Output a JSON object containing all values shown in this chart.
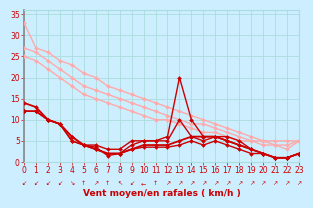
{
  "title": "",
  "xlabel": "Vent moyen/en rafales ( km/h )",
  "bg_color": "#cceeff",
  "grid_color": "#aadddd",
  "xlim": [
    0,
    23
  ],
  "ylim": [
    0,
    36
  ],
  "yticks": [
    0,
    5,
    10,
    15,
    20,
    25,
    30,
    35
  ],
  "xticks": [
    0,
    1,
    2,
    3,
    4,
    5,
    6,
    7,
    8,
    9,
    10,
    11,
    12,
    13,
    14,
    15,
    16,
    17,
    18,
    19,
    20,
    21,
    22,
    23
  ],
  "series": [
    {
      "x": [
        0,
        1,
        2,
        3,
        4,
        5,
        6,
        7,
        8,
        9,
        10,
        11,
        12,
        13,
        14,
        15,
        16,
        17,
        18,
        19,
        20,
        21,
        22,
        23
      ],
      "y": [
        33,
        27,
        26,
        24,
        23,
        21,
        20,
        18,
        17,
        16,
        15,
        14,
        13,
        12,
        11,
        10,
        9,
        8,
        7,
        6,
        5,
        5,
        5,
        5
      ],
      "color": "#ffaaaa",
      "lw": 1.0,
      "marker": "D",
      "ms": 2.0
    },
    {
      "x": [
        0,
        1,
        2,
        3,
        4,
        5,
        6,
        7,
        8,
        9,
        10,
        11,
        12,
        13,
        14,
        15,
        16,
        17,
        18,
        19,
        20,
        21,
        22,
        23
      ],
      "y": [
        27,
        26,
        24,
        22,
        20,
        18,
        17,
        16,
        15,
        14,
        13,
        12,
        11,
        10,
        9,
        9,
        8,
        7,
        6,
        5,
        5,
        4,
        4,
        5
      ],
      "color": "#ffaaaa",
      "lw": 1.0,
      "marker": "D",
      "ms": 2.0
    },
    {
      "x": [
        0,
        1,
        2,
        3,
        4,
        5,
        6,
        7,
        8,
        9,
        10,
        11,
        12,
        13,
        14,
        15,
        16,
        17,
        18,
        19,
        20,
        21,
        22,
        23
      ],
      "y": [
        25,
        24,
        22,
        20,
        18,
        16,
        15,
        14,
        13,
        12,
        11,
        10,
        10,
        9,
        8,
        7,
        7,
        6,
        5,
        5,
        4,
        4,
        3,
        5
      ],
      "color": "#ffaaaa",
      "lw": 1.0,
      "marker": "D",
      "ms": 2.0
    },
    {
      "x": [
        0,
        1,
        2,
        3,
        4,
        5,
        6,
        7,
        8,
        9,
        10,
        11,
        12,
        13,
        14,
        15,
        16,
        17,
        18,
        19,
        20,
        21,
        22,
        23
      ],
      "y": [
        12,
        12,
        10,
        9,
        5,
        4,
        4,
        3,
        3,
        5,
        5,
        5,
        6,
        20,
        10,
        6,
        6,
        6,
        5,
        3,
        2,
        1,
        1,
        2
      ],
      "color": "#cc0000",
      "lw": 1.0,
      "marker": "D",
      "ms": 2.0
    },
    {
      "x": [
        0,
        1,
        2,
        3,
        4,
        5,
        6,
        7,
        8,
        9,
        10,
        11,
        12,
        13,
        14,
        15,
        16,
        17,
        18,
        19,
        20,
        21,
        22,
        23
      ],
      "y": [
        12,
        12,
        10,
        9,
        5,
        4,
        3,
        2,
        2,
        4,
        5,
        5,
        5,
        10,
        6,
        5,
        6,
        5,
        4,
        3,
        2,
        1,
        1,
        2
      ],
      "color": "#cc0000",
      "lw": 1.0,
      "marker": "D",
      "ms": 2.0
    },
    {
      "x": [
        0,
        1,
        2,
        3,
        4,
        5,
        6,
        7,
        8,
        9,
        10,
        11,
        12,
        13,
        14,
        15,
        16,
        17,
        18,
        19,
        20,
        21,
        22,
        23
      ],
      "y": [
        14,
        13,
        10,
        9,
        6,
        4,
        3,
        2,
        2,
        3,
        4,
        4,
        4,
        5,
        6,
        6,
        6,
        5,
        4,
        3,
        2,
        1,
        1,
        2
      ],
      "color": "#cc0000",
      "lw": 1.3,
      "marker": "D",
      "ms": 2.0
    },
    {
      "x": [
        0,
        1,
        2,
        3,
        4,
        5,
        6,
        7,
        8,
        9,
        10,
        11,
        12,
        13,
        14,
        15,
        16,
        17,
        18,
        19,
        20,
        21,
        22,
        23
      ],
      "y": [
        12,
        12,
        10,
        9,
        6,
        4,
        3.5,
        1.5,
        2,
        3,
        3.5,
        3.5,
        3.5,
        4,
        5,
        4,
        5,
        4,
        3,
        2,
        2,
        1,
        1,
        2
      ],
      "color": "#cc0000",
      "lw": 1.0,
      "marker": "D",
      "ms": 2.0
    }
  ],
  "arrow_chars": [
    "↙",
    "↙",
    "↙",
    "↙",
    "↘",
    "↑",
    "↗",
    "↑",
    "↖",
    "↙",
    "←",
    "↑",
    "↗",
    "↗",
    "↗",
    "↗",
    "↗",
    "↗",
    "↗",
    "↗",
    "↗",
    "↗",
    "↗",
    "↗"
  ],
  "arrow_color": "#cc0000",
  "xlabel_color": "#cc0000",
  "xlabel_fontsize": 6.5,
  "tick_color": "#cc0000",
  "tick_fontsize": 5.5,
  "left_border_color": "#888888"
}
